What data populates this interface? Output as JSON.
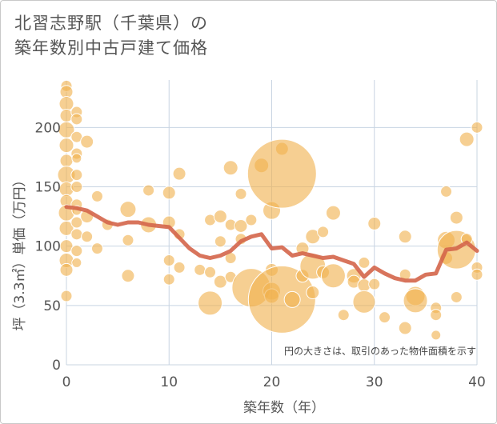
{
  "title_lines": [
    "北習志野駅（千葉県）の",
    "築年数別中古戸建て価格"
  ],
  "chart_data": {
    "type": "scatter",
    "xlabel": "築年数（年）",
    "ylabel": "坪（3.3㎡）単価（万円）",
    "xlim": [
      0,
      40
    ],
    "ylim": [
      0,
      240
    ],
    "xticks": [
      0,
      10,
      20,
      30,
      40
    ],
    "yticks": [
      0,
      50,
      100,
      150,
      200
    ],
    "grid": true,
    "annotation": "円の大きさは、取引のあった物件面積を示す",
    "colors": {
      "bubble": "#f0b24f",
      "line": "#d4654a",
      "grid": "#c8d4e2"
    },
    "points": [
      {
        "x": 0,
        "y": 235,
        "r": 7
      },
      {
        "x": 0,
        "y": 230,
        "r": 8
      },
      {
        "x": 0,
        "y": 220,
        "r": 9
      },
      {
        "x": 0,
        "y": 210,
        "r": 8
      },
      {
        "x": 0,
        "y": 198,
        "r": 10
      },
      {
        "x": 0,
        "y": 185,
        "r": 9
      },
      {
        "x": 0,
        "y": 172,
        "r": 8
      },
      {
        "x": 0,
        "y": 160,
        "r": 11
      },
      {
        "x": 0,
        "y": 148,
        "r": 9
      },
      {
        "x": 0,
        "y": 138,
        "r": 8
      },
      {
        "x": 0,
        "y": 128,
        "r": 10
      },
      {
        "x": 0,
        "y": 115,
        "r": 9
      },
      {
        "x": 0,
        "y": 100,
        "r": 8
      },
      {
        "x": 0,
        "y": 88,
        "r": 9
      },
      {
        "x": 0,
        "y": 80,
        "r": 8
      },
      {
        "x": 0,
        "y": 58,
        "r": 7
      },
      {
        "x": 1,
        "y": 213,
        "r": 7
      },
      {
        "x": 1,
        "y": 207,
        "r": 7
      },
      {
        "x": 1,
        "y": 192,
        "r": 7
      },
      {
        "x": 1,
        "y": 178,
        "r": 7
      },
      {
        "x": 1,
        "y": 174,
        "r": 6
      },
      {
        "x": 1,
        "y": 160,
        "r": 7
      },
      {
        "x": 1,
        "y": 150,
        "r": 7
      },
      {
        "x": 1,
        "y": 135,
        "r": 7
      },
      {
        "x": 1,
        "y": 130,
        "r": 6
      },
      {
        "x": 1,
        "y": 120,
        "r": 7
      },
      {
        "x": 1,
        "y": 110,
        "r": 7
      },
      {
        "x": 1,
        "y": 96,
        "r": 7
      },
      {
        "x": 1,
        "y": 86,
        "r": 6
      },
      {
        "x": 2,
        "y": 188,
        "r": 8
      },
      {
        "x": 2,
        "y": 125,
        "r": 8
      },
      {
        "x": 2,
        "y": 108,
        "r": 7
      },
      {
        "x": 3,
        "y": 142,
        "r": 7
      },
      {
        "x": 3,
        "y": 98,
        "r": 7
      },
      {
        "x": 4,
        "y": 118,
        "r": 7
      },
      {
        "x": 6,
        "y": 131,
        "r": 10
      },
      {
        "x": 6,
        "y": 105,
        "r": 7
      },
      {
        "x": 6,
        "y": 75,
        "r": 8
      },
      {
        "x": 8,
        "y": 147,
        "r": 7
      },
      {
        "x": 8,
        "y": 118,
        "r": 10
      },
      {
        "x": 10,
        "y": 145,
        "r": 8
      },
      {
        "x": 10,
        "y": 120,
        "r": 8
      },
      {
        "x": 10,
        "y": 88,
        "r": 7
      },
      {
        "x": 10,
        "y": 72,
        "r": 7
      },
      {
        "x": 11,
        "y": 161,
        "r": 8
      },
      {
        "x": 11,
        "y": 110,
        "r": 7
      },
      {
        "x": 11,
        "y": 82,
        "r": 7
      },
      {
        "x": 13,
        "y": 80,
        "r": 7
      },
      {
        "x": 14,
        "y": 122,
        "r": 7
      },
      {
        "x": 14,
        "y": 78,
        "r": 7
      },
      {
        "x": 14,
        "y": 52,
        "r": 15
      },
      {
        "x": 15,
        "y": 125,
        "r": 8
      },
      {
        "x": 15,
        "y": 104,
        "r": 7
      },
      {
        "x": 15,
        "y": 70,
        "r": 8
      },
      {
        "x": 16,
        "y": 166,
        "r": 9
      },
      {
        "x": 16,
        "y": 118,
        "r": 7
      },
      {
        "x": 16,
        "y": 90,
        "r": 7
      },
      {
        "x": 16,
        "y": 74,
        "r": 7
      },
      {
        "x": 17,
        "y": 144,
        "r": 7
      },
      {
        "x": 17,
        "y": 117,
        "r": 8
      },
      {
        "x": 17,
        "y": 106,
        "r": 7
      },
      {
        "x": 18,
        "y": 122,
        "r": 7
      },
      {
        "x": 18,
        "y": 65,
        "r": 24
      },
      {
        "x": 19,
        "y": 168,
        "r": 9
      },
      {
        "x": 20,
        "y": 130,
        "r": 11
      },
      {
        "x": 20,
        "y": 80,
        "r": 8
      },
      {
        "x": 20,
        "y": 62,
        "r": 11
      },
      {
        "x": 20,
        "y": 58,
        "r": 9
      },
      {
        "x": 21,
        "y": 182,
        "r": 8
      },
      {
        "x": 21,
        "y": 161,
        "r": 43
      },
      {
        "x": 21,
        "y": 55,
        "r": 42
      },
      {
        "x": 22,
        "y": 55,
        "r": 10
      },
      {
        "x": 23,
        "y": 98,
        "r": 8
      },
      {
        "x": 23,
        "y": 75,
        "r": 8
      },
      {
        "x": 24,
        "y": 108,
        "r": 9
      },
      {
        "x": 24,
        "y": 83,
        "r": 16
      },
      {
        "x": 24,
        "y": 61,
        "r": 8
      },
      {
        "x": 25,
        "y": 112,
        "r": 7
      },
      {
        "x": 25,
        "y": 78,
        "r": 8
      },
      {
        "x": 26,
        "y": 128,
        "r": 9
      },
      {
        "x": 26,
        "y": 75,
        "r": 15
      },
      {
        "x": 27,
        "y": 42,
        "r": 7
      },
      {
        "x": 28,
        "y": 75,
        "r": 9
      },
      {
        "x": 28,
        "y": 70,
        "r": 8
      },
      {
        "x": 29,
        "y": 86,
        "r": 7
      },
      {
        "x": 29,
        "y": 67,
        "r": 8
      },
      {
        "x": 29,
        "y": 53,
        "r": 14
      },
      {
        "x": 30,
        "y": 119,
        "r": 8
      },
      {
        "x": 30,
        "y": 68,
        "r": 7
      },
      {
        "x": 31,
        "y": 40,
        "r": 7
      },
      {
        "x": 33,
        "y": 108,
        "r": 8
      },
      {
        "x": 33,
        "y": 76,
        "r": 7
      },
      {
        "x": 33,
        "y": 31,
        "r": 8
      },
      {
        "x": 34,
        "y": 58,
        "r": 12
      },
      {
        "x": 34,
        "y": 54,
        "r": 15
      },
      {
        "x": 36,
        "y": 48,
        "r": 7
      },
      {
        "x": 36,
        "y": 42,
        "r": 7
      },
      {
        "x": 36,
        "y": 25,
        "r": 6
      },
      {
        "x": 37,
        "y": 146,
        "r": 7
      },
      {
        "x": 37,
        "y": 105,
        "r": 11
      },
      {
        "x": 37,
        "y": 90,
        "r": 8
      },
      {
        "x": 38,
        "y": 124,
        "r": 8
      },
      {
        "x": 38,
        "y": 97,
        "r": 24
      },
      {
        "x": 38,
        "y": 57,
        "r": 7
      },
      {
        "x": 39,
        "y": 190,
        "r": 9
      },
      {
        "x": 39,
        "y": 106,
        "r": 7
      },
      {
        "x": 40,
        "y": 200,
        "r": 7
      },
      {
        "x": 40,
        "y": 82,
        "r": 7
      },
      {
        "x": 40,
        "y": 76,
        "r": 7
      }
    ],
    "trend": {
      "name": "",
      "x": [
        0,
        1,
        2,
        3,
        4,
        5,
        6,
        7,
        8,
        9,
        10,
        11,
        12,
        13,
        14,
        15,
        16,
        17,
        18,
        19,
        20,
        21,
        22,
        23,
        24,
        25,
        26,
        27,
        28,
        29,
        30,
        31,
        32,
        33,
        34,
        35,
        36,
        37,
        38,
        39,
        40
      ],
      "y": [
        133,
        132,
        130,
        125,
        120,
        118,
        120,
        120,
        118,
        117,
        116,
        107,
        98,
        92,
        90,
        92,
        96,
        104,
        108,
        110,
        98,
        99,
        92,
        94,
        92,
        90,
        91,
        88,
        85,
        74,
        82,
        77,
        73,
        71,
        71,
        76,
        77,
        97,
        98,
        103,
        96
      ]
    }
  }
}
